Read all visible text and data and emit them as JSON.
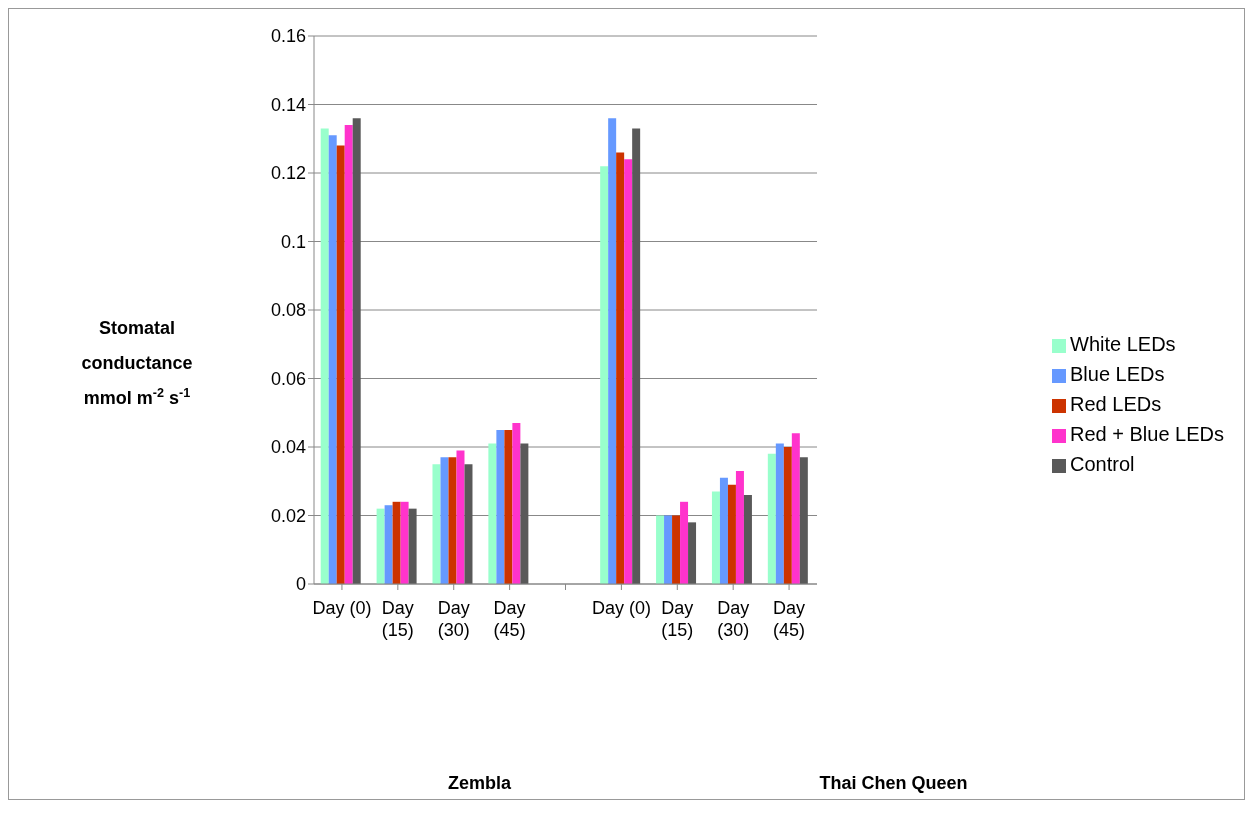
{
  "chart_data": {
    "type": "bar",
    "categories": [
      "Day (0)",
      "Day (15)",
      "Day (30)",
      "Day (45)",
      null,
      "Day (0)",
      "Day (15)",
      "Day (30)",
      "Day (45)"
    ],
    "ylabel": "Stomatal conductance mmol m$^{-2}$ s$^{-1}$",
    "annotations": [
      "Zembla",
      "Thai Chen Queen"
    ],
    "series": [
      {
        "name": "White LEDs",
        "color": "#99ffcc",
        "values": [
          0.133,
          0.022,
          0.035,
          0.041,
          null,
          0.122,
          0.02,
          0.027,
          0.038
        ]
      },
      {
        "name": "Blue LEDs",
        "color": "#6699ff",
        "values": [
          0.131,
          0.023,
          0.037,
          0.045,
          null,
          0.136,
          0.02,
          0.031,
          0.041
        ]
      },
      {
        "name": "Red LEDs",
        "color": "#cc3300",
        "values": [
          0.128,
          0.024,
          0.037,
          0.045,
          null,
          0.126,
          0.02,
          0.029,
          0.04
        ]
      },
      {
        "name": "Red + Blue LEDs",
        "color": "#ff33cc",
        "values": [
          0.134,
          0.024,
          0.039,
          0.047,
          null,
          0.124,
          0.024,
          0.033,
          0.044
        ]
      },
      {
        "name": "Control",
        "color": "#595959",
        "values": [
          0.136,
          0.022,
          0.035,
          0.041,
          null,
          0.133,
          0.018,
          0.026,
          0.037
        ]
      }
    ],
    "ylim": [
      0,
      0.16
    ],
    "yticks": [
      0,
      0.02,
      0.04,
      0.06,
      0.08,
      0.1,
      0.12,
      0.14,
      0.16
    ],
    "grid": "y",
    "legend": "right"
  }
}
